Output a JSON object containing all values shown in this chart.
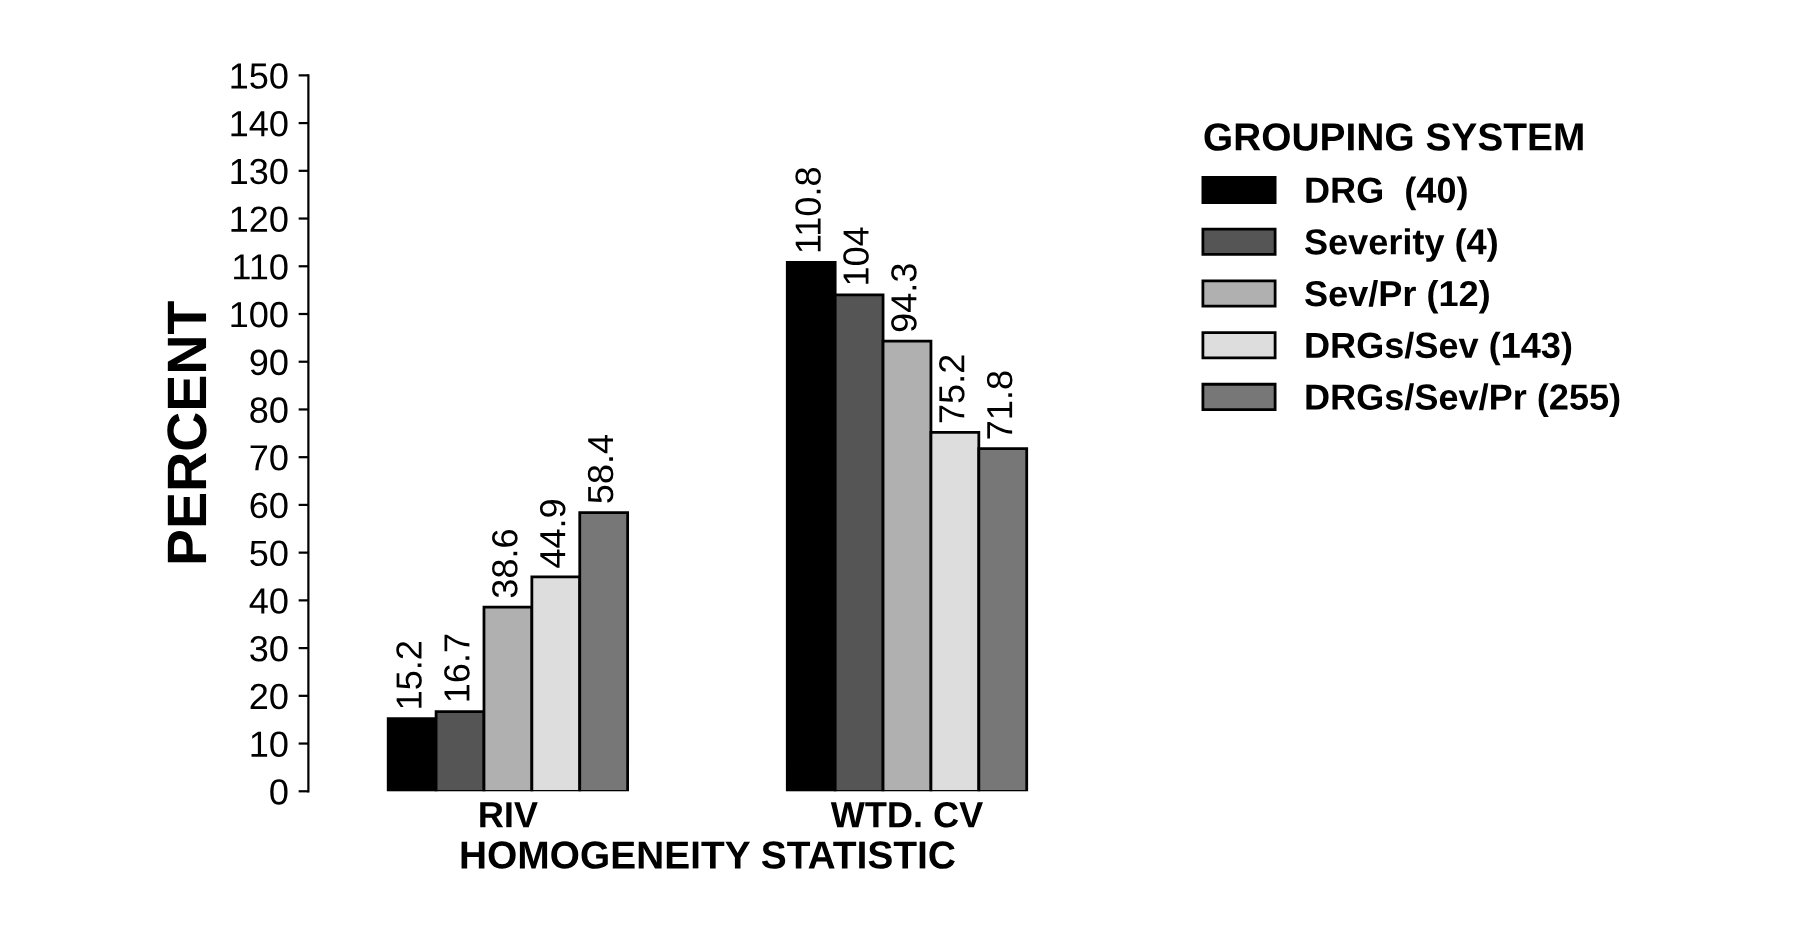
{
  "chart_data": {
    "type": "bar",
    "xlabel": "HOMOGENEITY STATISTIC",
    "ylabel": "PERCENT",
    "legend_title": "GROUPING SYSTEM",
    "categories": [
      "RIV",
      "WTD. CV"
    ],
    "series": [
      {
        "name": "DRG  (40)",
        "color": "#000000",
        "values": [
          15.2,
          110.8
        ]
      },
      {
        "name": "Severity (4)",
        "color": "#555555",
        "values": [
          16.7,
          104
        ]
      },
      {
        "name": "Sev/Pr (12)",
        "color": "#b0b0b0",
        "values": [
          38.6,
          94.3
        ]
      },
      {
        "name": "DRGs/Sev (143)",
        "color": "#dddddd",
        "values": [
          44.9,
          75.2
        ]
      },
      {
        "name": "DRGs/Sev/Pr (255)",
        "color": "#777777",
        "values": [
          58.4,
          71.8
        ]
      }
    ],
    "ylim": [
      0,
      150
    ],
    "yticks": [
      0,
      10,
      20,
      30,
      40,
      50,
      60,
      70,
      80,
      90,
      100,
      110,
      120,
      130,
      140,
      150
    ],
    "data_labels": true,
    "legend": "right",
    "grid": false
  }
}
